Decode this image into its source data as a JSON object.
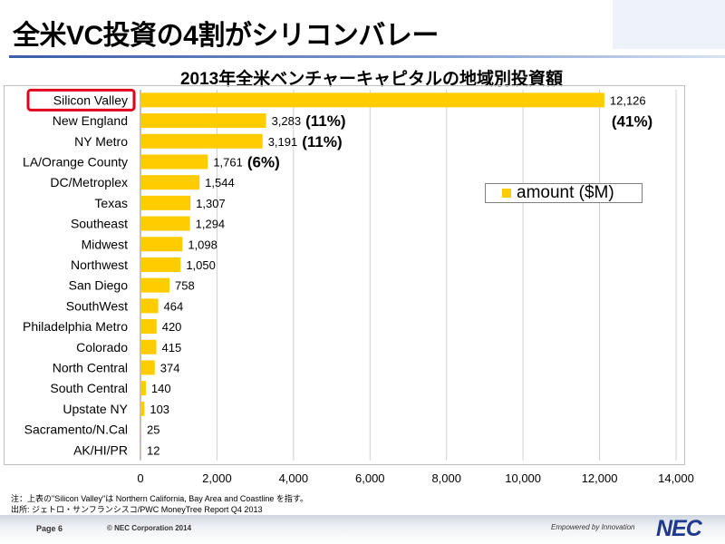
{
  "slide": {
    "title": "全米VC投資の4割がシリコンバレー",
    "notes": [
      "注：上表の\"Silicon  Valley\"は Northern California, Bay Area and Coastline を指す。",
      "出所: ジェトロ・サンフランシスコ/PWC MoneyTree Report Q4 2013"
    ],
    "footer": {
      "page": "Page 6",
      "copyright": "© NEC Corporation 2014",
      "tagline": "Empowered by Innovation",
      "logo": "NEC"
    }
  },
  "chart_data": {
    "type": "bar",
    "orientation": "horizontal",
    "title": "2013年全米ベンチャーキャピタルの地域別投資額",
    "categories": [
      "Silicon Valley",
      "New England",
      "NY Metro",
      "LA/Orange County",
      "DC/Metroplex",
      "Texas",
      "Southeast",
      "Midwest",
      "Northwest",
      "San Diego",
      "SouthWest",
      "Philadelphia Metro",
      "Colorado",
      "North Central",
      "South Central",
      "Upstate NY",
      "Sacramento/N.Cal",
      "AK/HI/PR"
    ],
    "series": [
      {
        "name": "amount ($M)",
        "values": [
          12126,
          3283,
          3191,
          1761,
          1544,
          1307,
          1294,
          1098,
          1050,
          758,
          464,
          420,
          415,
          374,
          140,
          103,
          25,
          12
        ],
        "labels": [
          "12,126",
          "3,283",
          "3,191",
          "1,761",
          "1,544",
          "1,307",
          "1,294",
          "1,098",
          "1,050",
          "758",
          "464",
          "420",
          "415",
          "374",
          "140",
          "103",
          "25",
          "12"
        ],
        "color": "#ffcc00"
      }
    ],
    "xlim": [
      0,
      14000
    ],
    "xticks": [
      0,
      2000,
      4000,
      6000,
      8000,
      10000,
      12000,
      14000
    ],
    "xtick_labels": [
      "0",
      "2,000",
      "4,000",
      "6,000",
      "8,000",
      "10,000",
      "12,000",
      "14,000"
    ],
    "grid": "vertical",
    "legend": "right",
    "annotations": [
      {
        "category": "Silicon Valley",
        "text": "(41%)"
      },
      {
        "category": "New England",
        "text": "(11%)"
      },
      {
        "category": "NY Metro",
        "text": "(11%)"
      },
      {
        "category": "LA/Orange County",
        "text": "(6%)"
      }
    ],
    "highlight": {
      "category": "Silicon Valley",
      "color": "#e0001b"
    }
  }
}
